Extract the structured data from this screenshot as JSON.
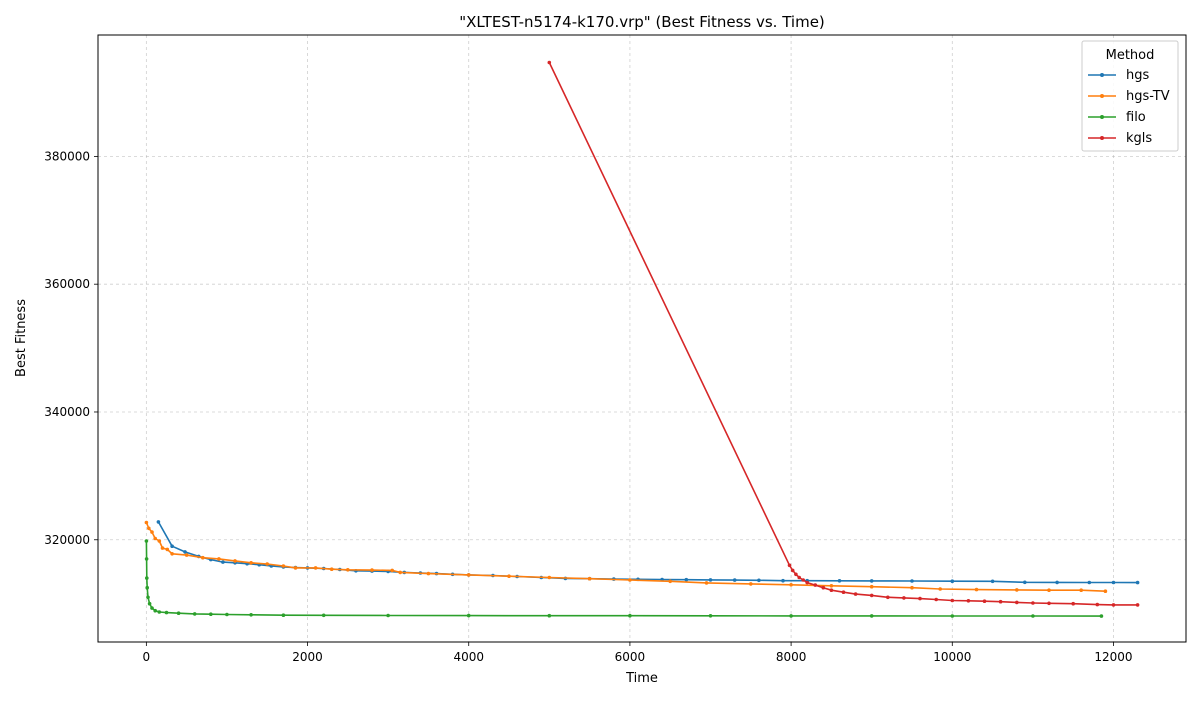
{
  "chart_data": {
    "type": "line",
    "title": "\"XLTEST-n5174-k170.vrp\" (Best Fitness vs. Time)",
    "xlabel": "Time",
    "ylabel": "Best Fitness",
    "xlim": [
      -600,
      12900
    ],
    "ylim": [
      304000,
      399000
    ],
    "xticks": [
      0,
      2000,
      4000,
      6000,
      8000,
      10000,
      12000
    ],
    "yticks": [
      320000,
      340000,
      360000,
      380000
    ],
    "xtick_labels": [
      "0",
      "2000",
      "4000",
      "6000",
      "8000",
      "10000",
      "12000"
    ],
    "ytick_labels": [
      "320000",
      "340000",
      "360000",
      "380000"
    ],
    "grid": true,
    "legend": {
      "title": "Method",
      "position": "top-right"
    },
    "series": [
      {
        "name": "hgs",
        "color": "#1f77b4",
        "points": [
          [
            150,
            322800
          ],
          [
            320,
            319000
          ],
          [
            480,
            318100
          ],
          [
            650,
            317400
          ],
          [
            800,
            316900
          ],
          [
            950,
            316500
          ],
          [
            1100,
            316400
          ],
          [
            1250,
            316250
          ],
          [
            1400,
            316100
          ],
          [
            1550,
            315900
          ],
          [
            1700,
            315750
          ],
          [
            1850,
            315650
          ],
          [
            2000,
            315600
          ],
          [
            2200,
            315500
          ],
          [
            2400,
            315350
          ],
          [
            2600,
            315150
          ],
          [
            2800,
            315100
          ],
          [
            3000,
            315050
          ],
          [
            3200,
            314900
          ],
          [
            3400,
            314800
          ],
          [
            3600,
            314700
          ],
          [
            3800,
            314600
          ],
          [
            4000,
            314500
          ],
          [
            4300,
            314400
          ],
          [
            4600,
            314250
          ],
          [
            4900,
            314100
          ],
          [
            5200,
            313950
          ],
          [
            5500,
            313900
          ],
          [
            5800,
            313850
          ],
          [
            6100,
            313820
          ],
          [
            6400,
            313780
          ],
          [
            6700,
            313750
          ],
          [
            7000,
            313720
          ],
          [
            7300,
            313680
          ],
          [
            7600,
            313650
          ],
          [
            7900,
            313600
          ],
          [
            8200,
            313600
          ],
          [
            8600,
            313580
          ],
          [
            9000,
            313560
          ],
          [
            9500,
            313540
          ],
          [
            10000,
            313520
          ],
          [
            10500,
            313500
          ],
          [
            10900,
            313350
          ],
          [
            11300,
            313330
          ],
          [
            11700,
            313320
          ],
          [
            12000,
            313320
          ],
          [
            12300,
            313300
          ]
        ]
      },
      {
        "name": "hgs-TV",
        "color": "#ff7f0e",
        "points": [
          [
            0,
            322700
          ],
          [
            30,
            321800
          ],
          [
            70,
            321200
          ],
          [
            110,
            320200
          ],
          [
            160,
            319800
          ],
          [
            200,
            318700
          ],
          [
            260,
            318500
          ],
          [
            320,
            317800
          ],
          [
            500,
            317600
          ],
          [
            700,
            317200
          ],
          [
            900,
            317000
          ],
          [
            1100,
            316700
          ],
          [
            1300,
            316400
          ],
          [
            1500,
            316200
          ],
          [
            1700,
            315900
          ],
          [
            1850,
            315600
          ],
          [
            2100,
            315600
          ],
          [
            2300,
            315400
          ],
          [
            2500,
            315300
          ],
          [
            2800,
            315250
          ],
          [
            3050,
            315200
          ],
          [
            3150,
            314900
          ],
          [
            3500,
            314700
          ],
          [
            4000,
            314500
          ],
          [
            4500,
            314300
          ],
          [
            5000,
            314100
          ],
          [
            5500,
            313900
          ],
          [
            6000,
            313700
          ],
          [
            6500,
            313500
          ],
          [
            6950,
            313250
          ],
          [
            7500,
            313100
          ],
          [
            8000,
            312950
          ],
          [
            8500,
            312800
          ],
          [
            9000,
            312650
          ],
          [
            9500,
            312500
          ],
          [
            9850,
            312300
          ],
          [
            10300,
            312200
          ],
          [
            10800,
            312150
          ],
          [
            11200,
            312100
          ],
          [
            11600,
            312100
          ],
          [
            11900,
            311950
          ]
        ]
      },
      {
        "name": "filo",
        "color": "#2ca02c",
        "points": [
          [
            0,
            319800
          ],
          [
            3,
            317000
          ],
          [
            6,
            314000
          ],
          [
            10,
            312500
          ],
          [
            20,
            311000
          ],
          [
            40,
            310000
          ],
          [
            70,
            309300
          ],
          [
            110,
            308900
          ],
          [
            160,
            308700
          ],
          [
            250,
            308600
          ],
          [
            400,
            308500
          ],
          [
            600,
            308400
          ],
          [
            800,
            308350
          ],
          [
            1000,
            308300
          ],
          [
            1300,
            308250
          ],
          [
            1700,
            308200
          ],
          [
            2200,
            308180
          ],
          [
            3000,
            308150
          ],
          [
            4000,
            308130
          ],
          [
            5000,
            308120
          ],
          [
            6000,
            308110
          ],
          [
            7000,
            308100
          ],
          [
            8000,
            308090
          ],
          [
            9000,
            308080
          ],
          [
            10000,
            308075
          ],
          [
            11000,
            308070
          ],
          [
            11850,
            308060
          ]
        ]
      },
      {
        "name": "kgls",
        "color": "#d62728",
        "points": [
          [
            5000,
            394700
          ],
          [
            7980,
            316000
          ],
          [
            8020,
            315200
          ],
          [
            8060,
            314600
          ],
          [
            8100,
            314100
          ],
          [
            8150,
            313700
          ],
          [
            8200,
            313300
          ],
          [
            8300,
            312900
          ],
          [
            8400,
            312500
          ],
          [
            8500,
            312100
          ],
          [
            8650,
            311800
          ],
          [
            8800,
            311500
          ],
          [
            9000,
            311300
          ],
          [
            9200,
            311000
          ],
          [
            9400,
            310900
          ],
          [
            9600,
            310800
          ],
          [
            9800,
            310650
          ],
          [
            10000,
            310500
          ],
          [
            10200,
            310450
          ],
          [
            10400,
            310380
          ],
          [
            10600,
            310300
          ],
          [
            10800,
            310200
          ],
          [
            11000,
            310100
          ],
          [
            11200,
            310050
          ],
          [
            11500,
            310000
          ],
          [
            11800,
            309850
          ],
          [
            12000,
            309800
          ],
          [
            12300,
            309800
          ]
        ]
      }
    ]
  }
}
